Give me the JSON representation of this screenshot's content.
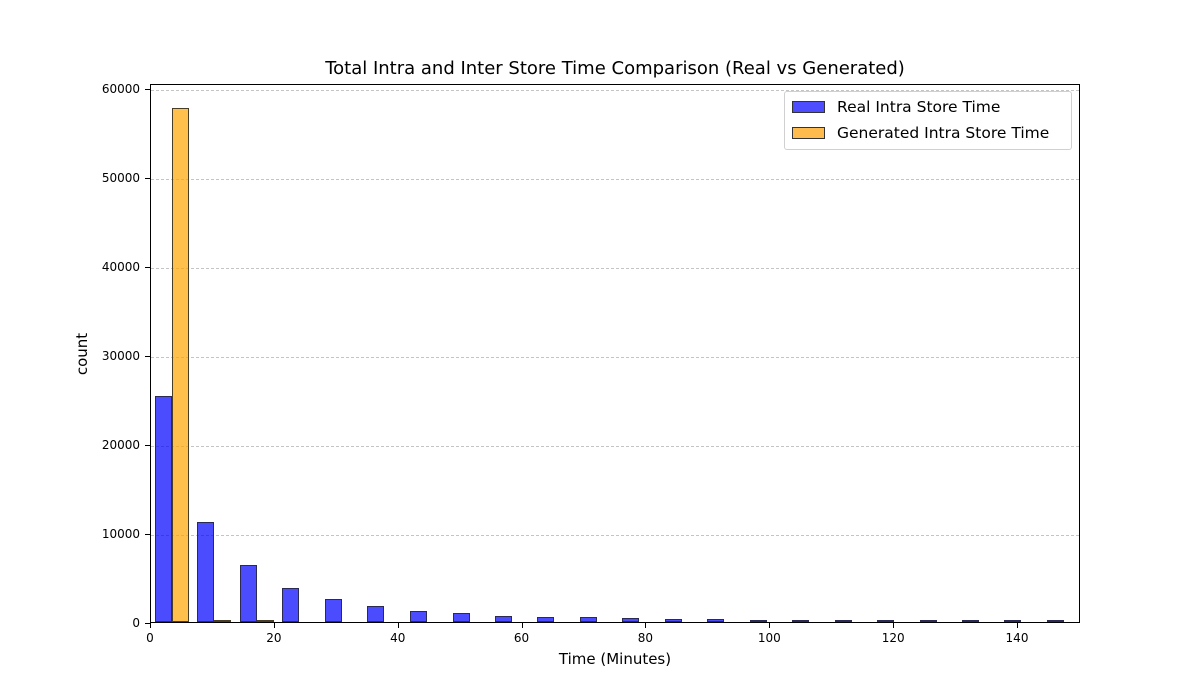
{
  "chart_data": {
    "type": "bar",
    "title": "Total Intra and Inter Store Time Comparison (Real vs Generated)",
    "xlabel": "Time (Minutes)",
    "ylabel": "count",
    "xlim": [
      0,
      150
    ],
    "ylim": [
      0,
      60500
    ],
    "grid": {
      "y": true,
      "x": false,
      "style": "dashed"
    },
    "legend_position": "upper right",
    "x_ticks": [
      0,
      20,
      40,
      60,
      80,
      100,
      120,
      140
    ],
    "y_ticks": [
      0,
      10000,
      20000,
      30000,
      40000,
      50000,
      60000
    ],
    "bin_width_minutes": 6.86,
    "bin_starts": [
      0.6,
      7.5,
      14.4,
      21.2,
      28.1,
      34.9,
      41.8,
      48.7,
      55.5,
      62.4,
      69.2,
      76.1,
      83.0,
      89.8,
      96.7,
      103.5,
      110.4,
      117.3,
      124.1,
      131.0,
      137.8,
      144.7
    ],
    "series": [
      {
        "name": "Real Intra Store Time",
        "color": "#4d4dff",
        "values": [
          25400,
          11200,
          6400,
          3800,
          2550,
          1750,
          1200,
          980,
          640,
          530,
          530,
          420,
          300,
          300,
          200,
          200,
          100,
          100,
          100,
          100,
          100,
          100
        ]
      },
      {
        "name": "Generated Intra Store Time",
        "color": "#ffbb4d",
        "values": [
          57700,
          120,
          100,
          0,
          0,
          0,
          0,
          0,
          0,
          0,
          0,
          0,
          0,
          0,
          0,
          0,
          0,
          0,
          0,
          0,
          0,
          0
        ]
      }
    ]
  }
}
